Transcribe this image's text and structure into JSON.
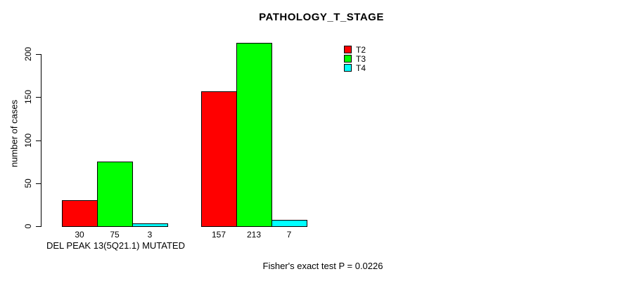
{
  "chart_data": {
    "type": "bar",
    "title": "PATHOLOGY_T_STAGE",
    "ylabel": "number of cases",
    "xlabel": "DEL PEAK 13(5Q21.1) MUTATED",
    "annotation": "Fisher's exact test P = 0.0226",
    "axis_ticks": [
      0,
      50,
      100,
      150,
      200
    ],
    "ylim": [
      0,
      220
    ],
    "grid": false,
    "legend_position": "top-right",
    "groups": 2,
    "series": [
      {
        "name": "T2",
        "color": "#ff0000",
        "values": [
          30,
          157
        ]
      },
      {
        "name": "T3",
        "color": "#00ff00",
        "values": [
          75,
          213
        ]
      },
      {
        "name": "T4",
        "color": "#00ffff",
        "values": [
          3,
          7
        ]
      }
    ],
    "bar_value_labels_shown": true
  }
}
